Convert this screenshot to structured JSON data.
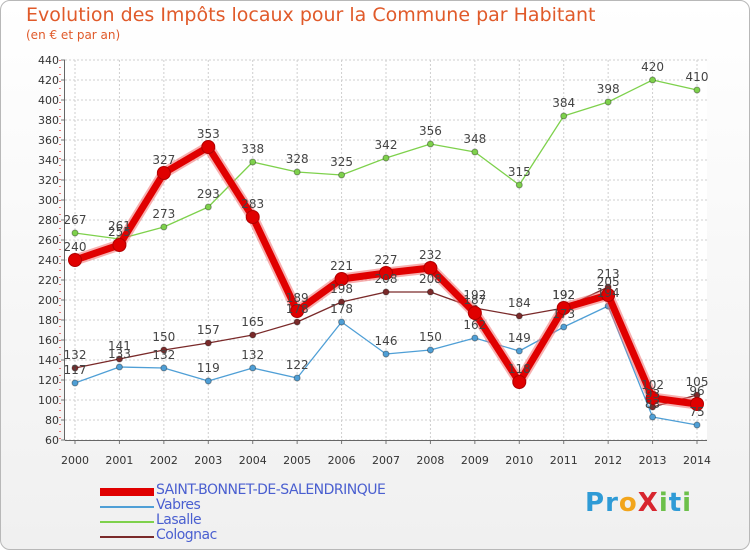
{
  "chart_data": {
    "type": "line",
    "title": "Evolution des Impôts locaux pour la Commune par Habitant",
    "subtitle": "(en € et par an)",
    "xlabel": "",
    "ylabel": "",
    "ylim": [
      60,
      440
    ],
    "yticks": [
      "440",
      "420",
      "400",
      "380",
      "360",
      "340",
      "320",
      "300",
      "280",
      "260",
      "240",
      "220",
      "200",
      "180",
      "160",
      "140",
      "120",
      "100",
      "80",
      "60"
    ],
    "categories": [
      "2000",
      "2001",
      "2002",
      "2003",
      "2004",
      "2005",
      "2006",
      "2007",
      "2008",
      "2009",
      "2010",
      "2011",
      "2012",
      "2013",
      "2014"
    ],
    "series": [
      {
        "name": "SAINT-BONNET-DE-SALENDRINQUE",
        "color": "#e00000",
        "values": [
          240,
          255,
          327,
          353,
          283,
          189,
          221,
          227,
          232,
          187,
          118,
          192,
          205,
          102,
          96
        ],
        "labels": [
          "240",
          "255",
          "327",
          "353",
          "283",
          "189",
          "221",
          "227",
          "232",
          "187",
          "118",
          "192",
          "205",
          "102",
          "96"
        ]
      },
      {
        "name": "Vabres",
        "color": "#4f9fd6",
        "values": [
          117,
          133,
          132,
          119,
          132,
          122,
          178,
          146,
          150,
          162,
          149,
          173,
          194,
          83,
          75
        ],
        "labels": [
          "117",
          "133",
          "132",
          "119",
          "132",
          "122",
          "178",
          "146",
          "150",
          "162",
          "149",
          "173",
          "194",
          "83",
          "75"
        ]
      },
      {
        "name": "Lasalle",
        "color": "#7ed14c",
        "values": [
          267,
          261,
          273,
          293,
          338,
          328,
          325,
          342,
          356,
          348,
          315,
          384,
          398,
          420,
          410
        ],
        "labels": [
          "267",
          "261",
          "273",
          "293",
          "338",
          "328",
          "325",
          "342",
          "356",
          "348",
          "315",
          "384",
          "398",
          "420",
          "410"
        ]
      },
      {
        "name": "Colognac",
        "color": "#7a2a2a",
        "values": [
          132,
          141,
          150,
          157,
          165,
          178,
          198,
          208,
          208,
          192,
          184,
          192,
          213,
          93,
          105
        ],
        "labels": [
          "132",
          "141",
          "150",
          "157",
          "165",
          "178",
          "198",
          "208",
          "208",
          "192",
          "184",
          "192",
          "213",
          "93",
          "105"
        ]
      }
    ],
    "legend_position": "bottom-left"
  },
  "logo": {
    "text": "ProXiti",
    "parts": [
      "P",
      "r",
      "o",
      "X",
      "i",
      "t",
      "i"
    ]
  }
}
